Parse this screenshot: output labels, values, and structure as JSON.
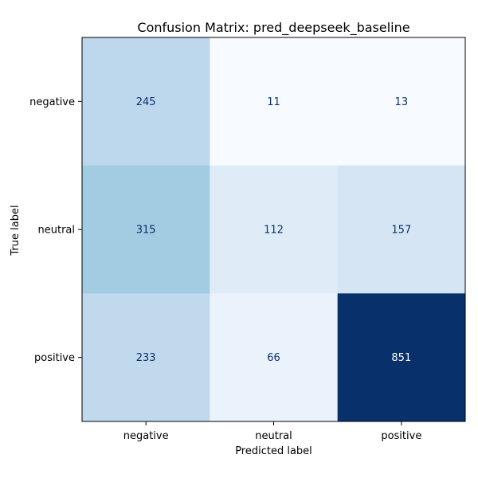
{
  "chart_data": {
    "type": "heatmap",
    "title": "Confusion Matrix: pred_deepseek_baseline",
    "xlabel": "Predicted label",
    "ylabel": "True label",
    "row_labels": [
      "negative",
      "neutral",
      "positive"
    ],
    "col_labels": [
      "negative",
      "neutral",
      "positive"
    ],
    "values": [
      [
        245,
        11,
        13
      ],
      [
        315,
        112,
        157
      ],
      [
        233,
        66,
        851
      ]
    ],
    "colormap": "Blues",
    "value_range": [
      11,
      851
    ],
    "colors": {
      "light_text": "#ffffff",
      "dark_text": "#08306b",
      "axis": "#000000",
      "background": "#ffffff"
    }
  }
}
